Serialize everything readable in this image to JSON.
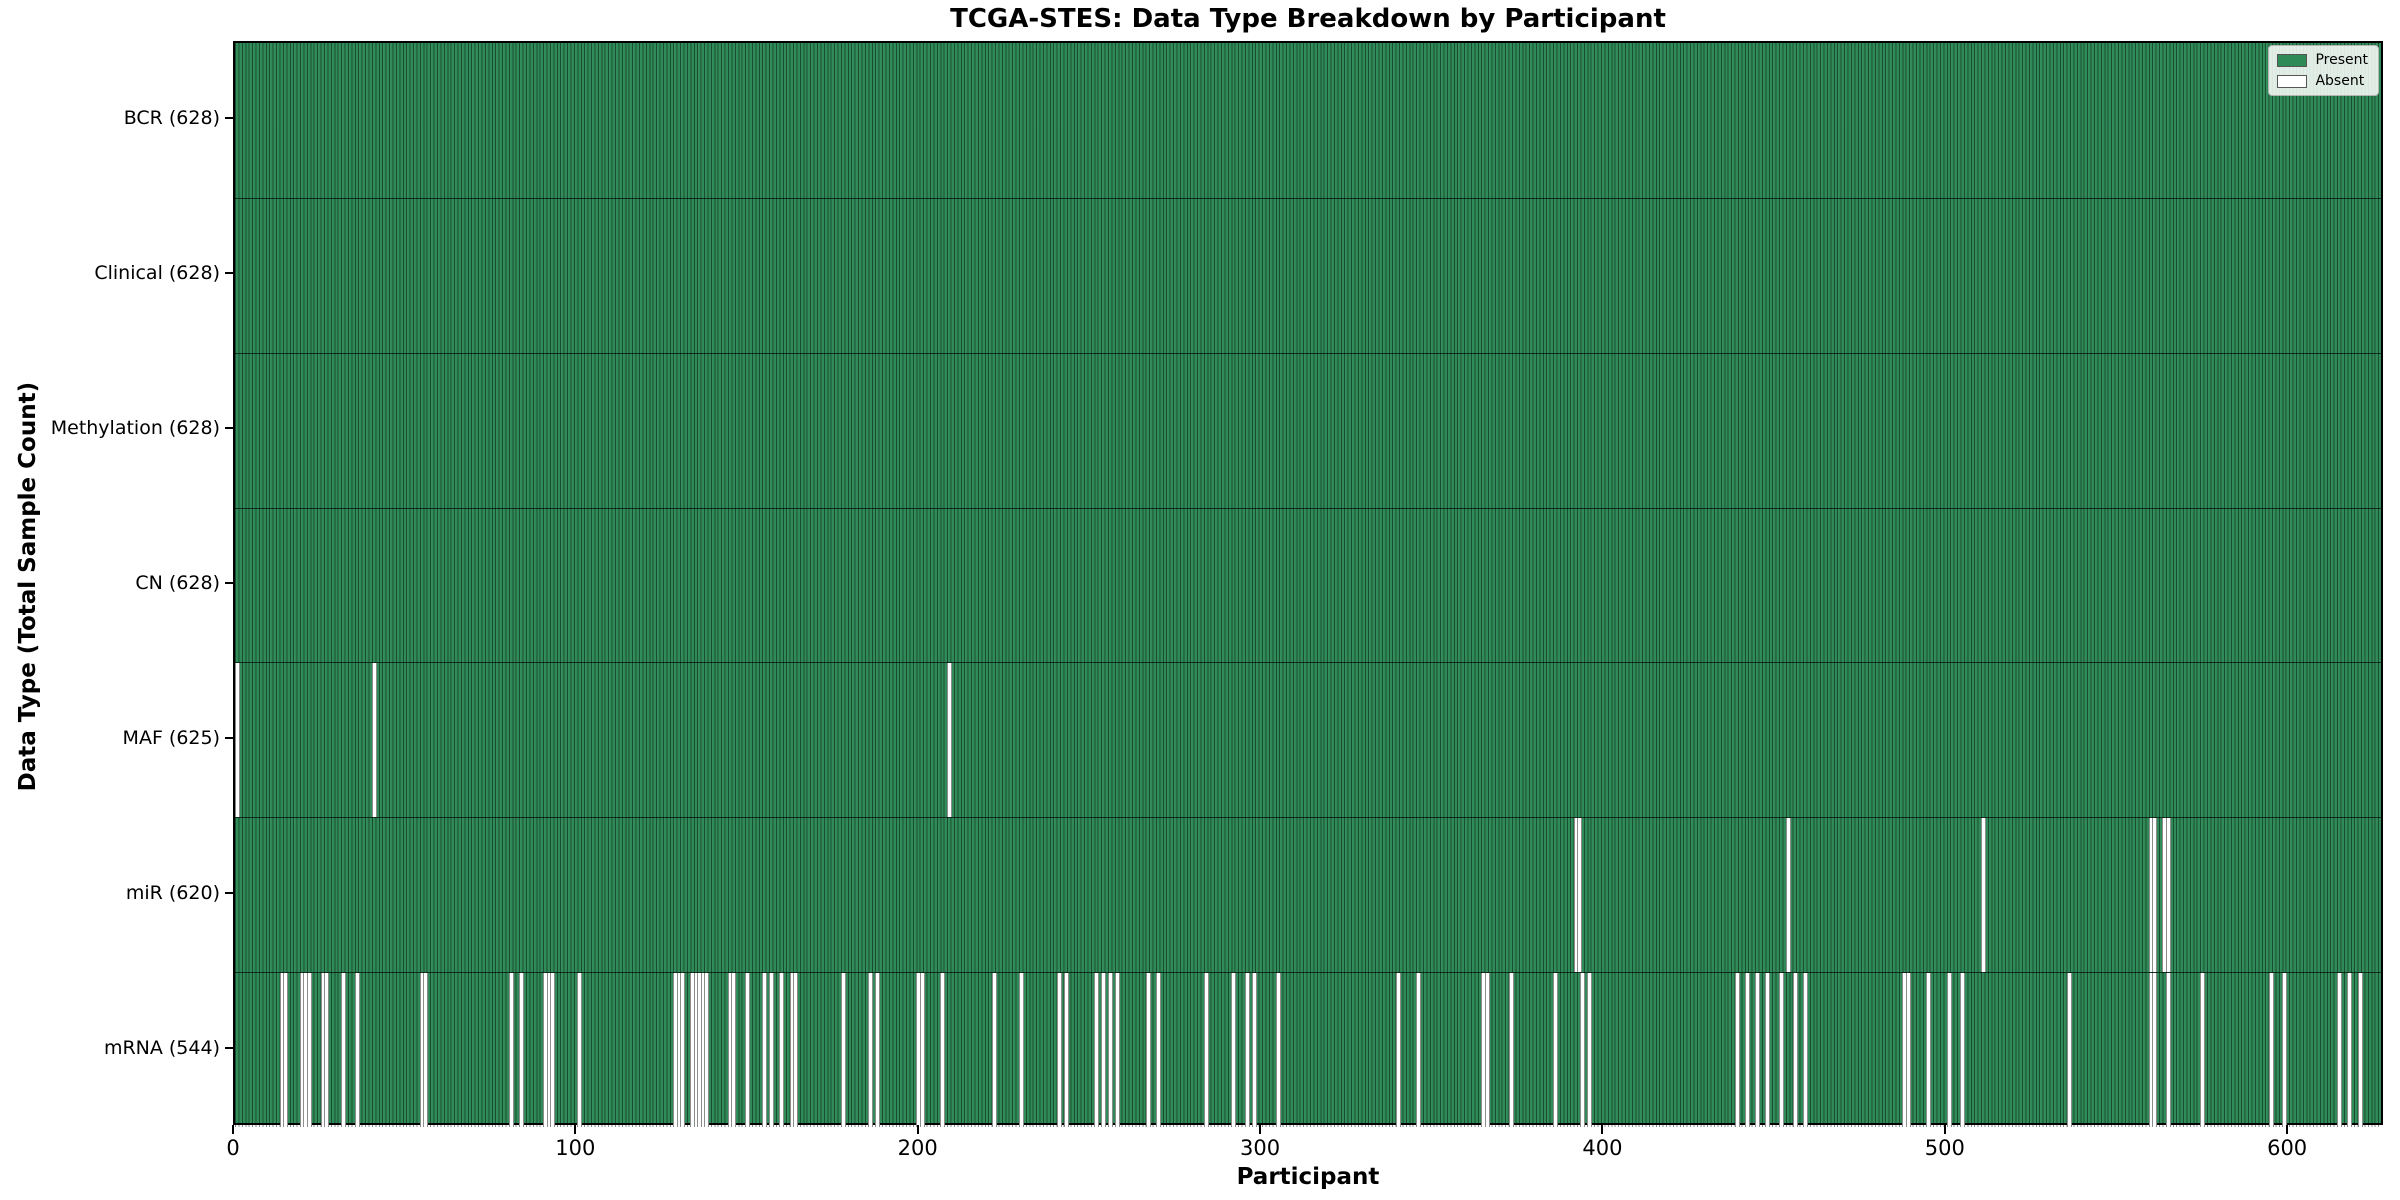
{
  "title": "TCGA-STES: Data Type Breakdown by Participant",
  "chart_data": {
    "type": "heatmap",
    "title": "TCGA-STES: Data Type Breakdown by Participant",
    "xlabel": "Participant",
    "ylabel": "Data Type (Total Sample Count)",
    "xlim": [
      0,
      628
    ],
    "n_participants": 628,
    "x_ticks": [
      0,
      100,
      200,
      300,
      400,
      500,
      600
    ],
    "grid": false,
    "colors": {
      "present": "#2e8b57",
      "absent": "#ffffff",
      "bar_edge": "rgba(0,0,0,0.45)"
    },
    "legend": {
      "position": "upper right",
      "entries": [
        {
          "label": "Present",
          "color": "#2e8b57"
        },
        {
          "label": "Absent",
          "color": "#ffffff"
        }
      ]
    },
    "rows": [
      {
        "name": "BCR",
        "label": "BCR (628)",
        "present_count": 628,
        "absent_count": 0,
        "absent_participants": []
      },
      {
        "name": "Clinical",
        "label": "Clinical (628)",
        "present_count": 628,
        "absent_count": 0,
        "absent_participants": []
      },
      {
        "name": "Methylation",
        "label": "Methylation (628)",
        "present_count": 628,
        "absent_count": 0,
        "absent_participants": []
      },
      {
        "name": "CN",
        "label": "CN (628)",
        "present_count": 628,
        "absent_count": 0,
        "absent_participants": []
      },
      {
        "name": "MAF",
        "label": "MAF (625)",
        "present_count": 625,
        "absent_count": 3,
        "absent_participants": [
          0,
          40,
          208
        ]
      },
      {
        "name": "miR",
        "label": "miR (620)",
        "present_count": 620,
        "absent_count": 8,
        "absent_participants": [
          391,
          392,
          453,
          510,
          559,
          560,
          563,
          564
        ]
      },
      {
        "name": "mRNA",
        "label": "mRNA (544)",
        "present_count": 544,
        "absent_count": 84,
        "absent_participants": [
          13,
          14,
          19,
          20,
          21,
          25,
          26,
          31,
          35,
          54,
          55,
          80,
          83,
          90,
          91,
          92,
          100,
          128,
          129,
          130,
          133,
          134,
          135,
          136,
          137,
          144,
          145,
          149,
          154,
          156,
          159,
          162,
          163,
          177,
          185,
          187,
          199,
          200,
          206,
          221,
          229,
          240,
          242,
          251,
          253,
          255,
          257,
          266,
          269,
          283,
          291,
          295,
          297,
          304,
          339,
          345,
          364,
          365,
          372,
          385,
          393,
          395,
          438,
          441,
          444,
          447,
          451,
          455,
          458,
          487,
          488,
          494,
          500,
          504,
          535,
          559,
          560,
          564,
          574,
          594,
          598,
          614,
          617,
          620
        ]
      }
    ]
  }
}
